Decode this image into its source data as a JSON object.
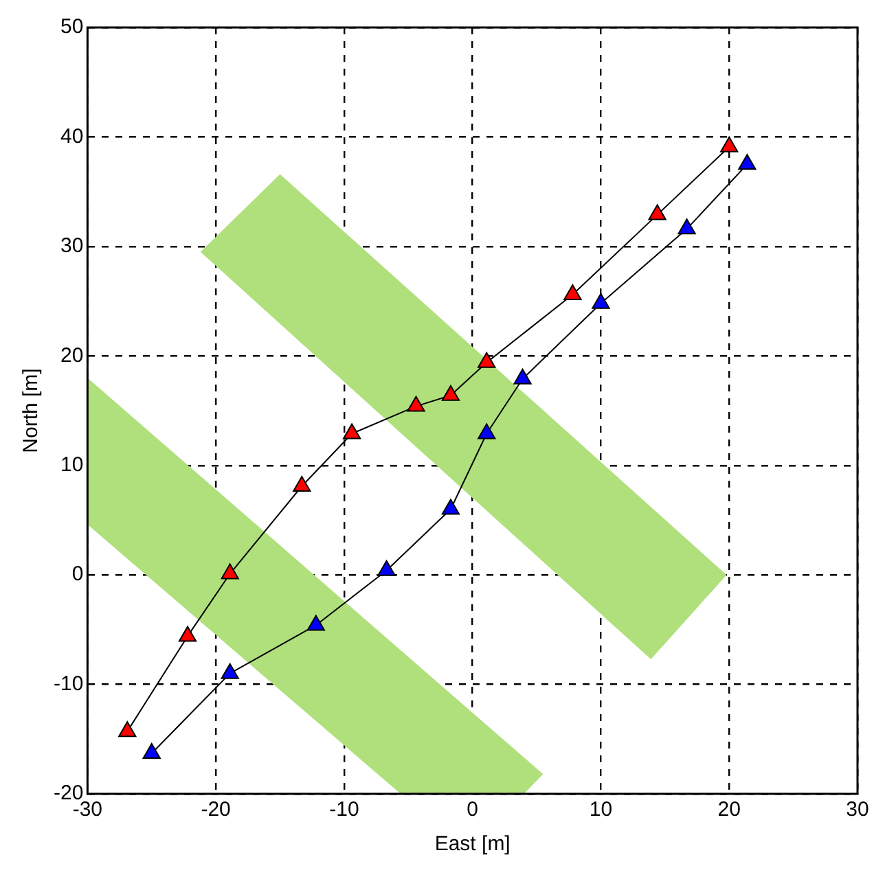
{
  "chart_data": {
    "type": "line",
    "xlabel": "East [m]",
    "ylabel": "North [m]",
    "xlim": [
      -30,
      30
    ],
    "xticks": [
      -30,
      -20,
      -10,
      0,
      10,
      20,
      30
    ],
    "ylim": [
      -20,
      50
    ],
    "yticks": [
      -20,
      -10,
      0,
      10,
      20,
      30,
      40,
      50
    ],
    "grid": true,
    "legend": false,
    "series": [
      {
        "type": "area",
        "color": "#b0e07c",
        "x": [
          -21.2,
          -15,
          19.8,
          13.9,
          -21.2
        ],
        "values": [
          29.5,
          36.6,
          0,
          -7.7,
          29.5
        ]
      },
      {
        "type": "area",
        "color": "#b0e07c",
        "x": [
          -30,
          5.5,
          4,
          -5.6,
          -30,
          -30
        ],
        "values": [
          18,
          -18.2,
          -20,
          -20,
          4.6,
          18
        ]
      },
      {
        "type": "line",
        "color": "#ff0000",
        "marker": "triangle",
        "x": [
          -26.9,
          -22.2,
          -18.9,
          -13.3,
          -9.4,
          -4.4,
          -1.7,
          1.1,
          7.8,
          14.4,
          20
        ],
        "values": [
          -14.3,
          -5.6,
          0.1,
          8.1,
          12.9,
          15.4,
          16.4,
          19.4,
          25.6,
          32.9,
          39.1
        ]
      },
      {
        "type": "line",
        "color": "#0000ff",
        "marker": "triangle",
        "x": [
          -25,
          -18.9,
          -12.2,
          -6.7,
          -1.7,
          1.1,
          3.9,
          10,
          16.7,
          21.4
        ],
        "values": [
          -16.3,
          -9,
          -4.6,
          0.4,
          6,
          12.9,
          17.9,
          24.8,
          31.6,
          37.5
        ]
      }
    ]
  }
}
